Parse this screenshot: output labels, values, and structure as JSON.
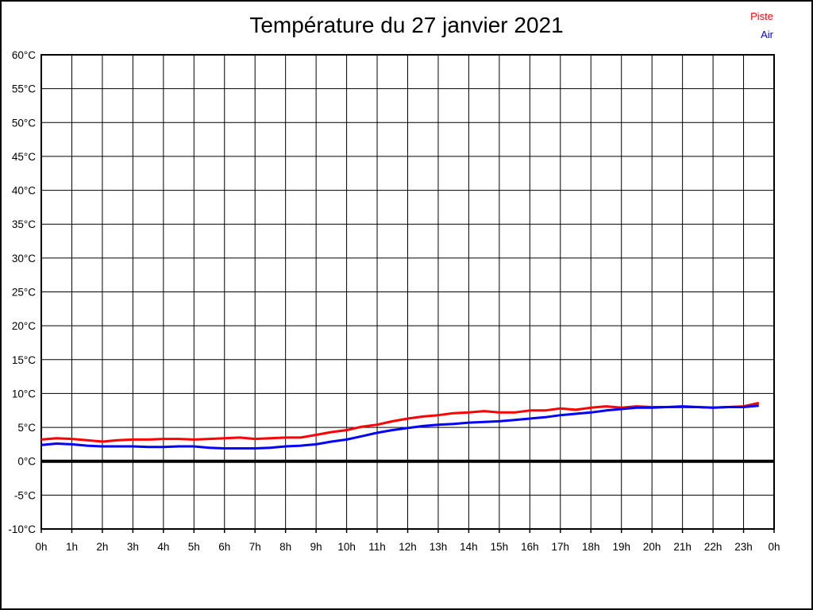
{
  "page": {
    "title": "Température du 27 janvier 2021"
  },
  "legend": {
    "position": "top-right",
    "items": [
      {
        "label": "Piste",
        "color": "#ff0000"
      },
      {
        "label": "Air",
        "color": "#0000ff"
      }
    ]
  },
  "chart_data": {
    "type": "line",
    "title": "Température du 27 janvier 2021",
    "xlabel": "",
    "ylabel": "",
    "xlim": [
      0,
      24
    ],
    "ylim": [
      -10,
      60
    ],
    "y_step": 5,
    "x_step_hours": 1,
    "grid": true,
    "zero_line": true,
    "grid_color": "#000000",
    "background": "#ffffff",
    "x_tick_labels": [
      "0h",
      "1h",
      "2h",
      "3h",
      "4h",
      "5h",
      "6h",
      "7h",
      "8h",
      "9h",
      "10h",
      "11h",
      "12h",
      "13h",
      "14h",
      "15h",
      "16h",
      "17h",
      "18h",
      "19h",
      "20h",
      "21h",
      "22h",
      "23h",
      "0h"
    ],
    "y_tick_labels": [
      "60°C",
      "55°C",
      "50°C",
      "45°C",
      "40°C",
      "35°C",
      "30°C",
      "25°C",
      "20°C",
      "15°C",
      "10°C",
      "5°C",
      "0°C",
      "-5°C",
      "-10°C"
    ],
    "x": [
      0,
      0.5,
      1,
      1.5,
      2,
      2.5,
      3,
      3.5,
      4,
      4.5,
      5,
      5.5,
      6,
      6.5,
      7,
      7.5,
      8,
      8.5,
      9,
      9.5,
      10,
      10.5,
      11,
      11.5,
      12,
      12.5,
      13,
      13.5,
      14,
      14.5,
      15,
      15.5,
      16,
      16.5,
      17,
      17.5,
      18,
      18.5,
      19,
      19.5,
      20,
      20.5,
      21,
      21.5,
      22,
      22.5,
      23,
      23.5
    ],
    "series": [
      {
        "name": "Piste",
        "color": "#ff0000",
        "values": [
          3.2,
          3.4,
          3.3,
          3.1,
          2.9,
          3.1,
          3.2,
          3.2,
          3.3,
          3.3,
          3.2,
          3.3,
          3.4,
          3.5,
          3.3,
          3.4,
          3.5,
          3.5,
          3.9,
          4.3,
          4.6,
          5.1,
          5.4,
          5.9,
          6.3,
          6.6,
          6.8,
          7.1,
          7.2,
          7.4,
          7.2,
          7.2,
          7.5,
          7.5,
          7.8,
          7.6,
          7.9,
          8.1,
          7.9,
          8.1,
          8.0,
          8.0,
          8.0,
          8.0,
          7.9,
          8.0,
          8.1,
          8.6
        ]
      },
      {
        "name": "Air",
        "color": "#0000ff",
        "values": [
          2.4,
          2.6,
          2.5,
          2.3,
          2.2,
          2.2,
          2.2,
          2.1,
          2.1,
          2.2,
          2.2,
          2.0,
          1.9,
          1.9,
          1.9,
          2.0,
          2.2,
          2.3,
          2.5,
          2.9,
          3.2,
          3.7,
          4.2,
          4.6,
          4.9,
          5.2,
          5.4,
          5.5,
          5.7,
          5.8,
          5.9,
          6.1,
          6.3,
          6.5,
          6.8,
          7.0,
          7.2,
          7.5,
          7.7,
          7.9,
          7.9,
          8.0,
          8.1,
          8.0,
          7.9,
          8.0,
          8.0,
          8.2
        ]
      }
    ]
  }
}
